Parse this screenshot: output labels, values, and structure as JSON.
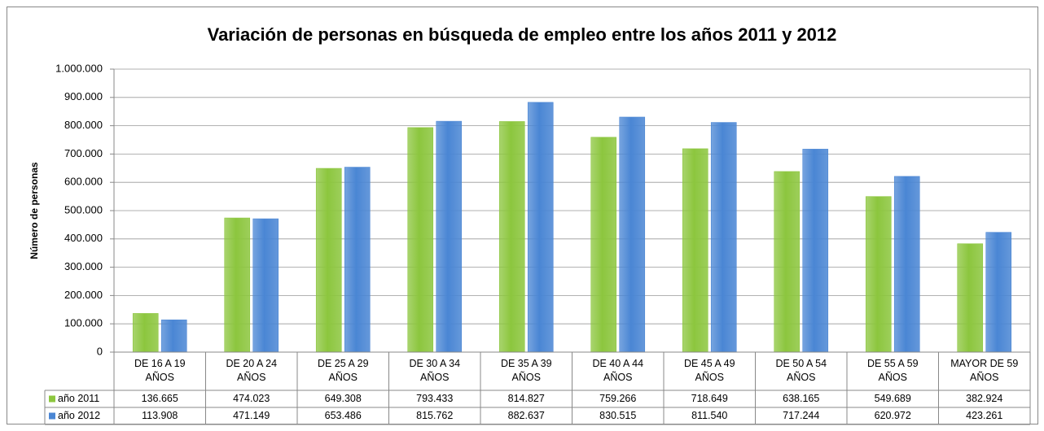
{
  "chart_data": {
    "type": "bar",
    "title": "Variación de personas en búsqueda de empleo entre los años 2011 y 2012",
    "y_label": "Número de personas",
    "categories": [
      "DE 16 A 19 AÑOS",
      "DE 20 A 24 AÑOS",
      "DE 25 A 29 AÑOS",
      "DE 30 A 34 AÑOS",
      "DE 35 A 39 AÑOS",
      "DE 40 A 44 AÑOS",
      "DE 45 A 49 AÑOS",
      "DE 50 A 54 AÑOS",
      "DE 55 A 59 AÑOS",
      "MAYOR DE 59 AÑOS"
    ],
    "series": [
      {
        "name": "año 2011",
        "color": "#8cc63e",
        "values": [
          136665,
          474023,
          649308,
          793433,
          814827,
          759266,
          718649,
          638165,
          549689,
          382924
        ],
        "value_labels": [
          "136.665",
          "474.023",
          "649.308",
          "793.433",
          "814.827",
          "759.266",
          "718.649",
          "638.165",
          "549.689",
          "382.924"
        ]
      },
      {
        "name": "año 2012",
        "color": "#4a86d4",
        "values": [
          113908,
          471149,
          653486,
          815762,
          882637,
          830515,
          811540,
          717244,
          620972,
          423261
        ],
        "value_labels": [
          "113.908",
          "471.149",
          "653.486",
          "815.762",
          "882.637",
          "830.515",
          "811.540",
          "717.244",
          "620.972",
          "423.261"
        ]
      }
    ],
    "ylim": [
      0,
      1000000
    ],
    "yticks": [
      0,
      {
        "value": 100000,
        "label": "100.000"
      },
      {
        "value": 200000,
        "label": "200.000"
      },
      {
        "value": 300000,
        "label": "300.000"
      },
      {
        "value": 400000,
        "label": "400.000"
      },
      {
        "value": 500000,
        "label": "500.000"
      },
      {
        "value": 600000,
        "label": "600.000"
      },
      {
        "value": 700000,
        "label": "700.000"
      },
      {
        "value": 800000,
        "label": "800.000"
      },
      {
        "value": 900000,
        "label": "900.000"
      },
      {
        "value": 1000000,
        "label": "1.000.000"
      }
    ],
    "grid": true
  }
}
